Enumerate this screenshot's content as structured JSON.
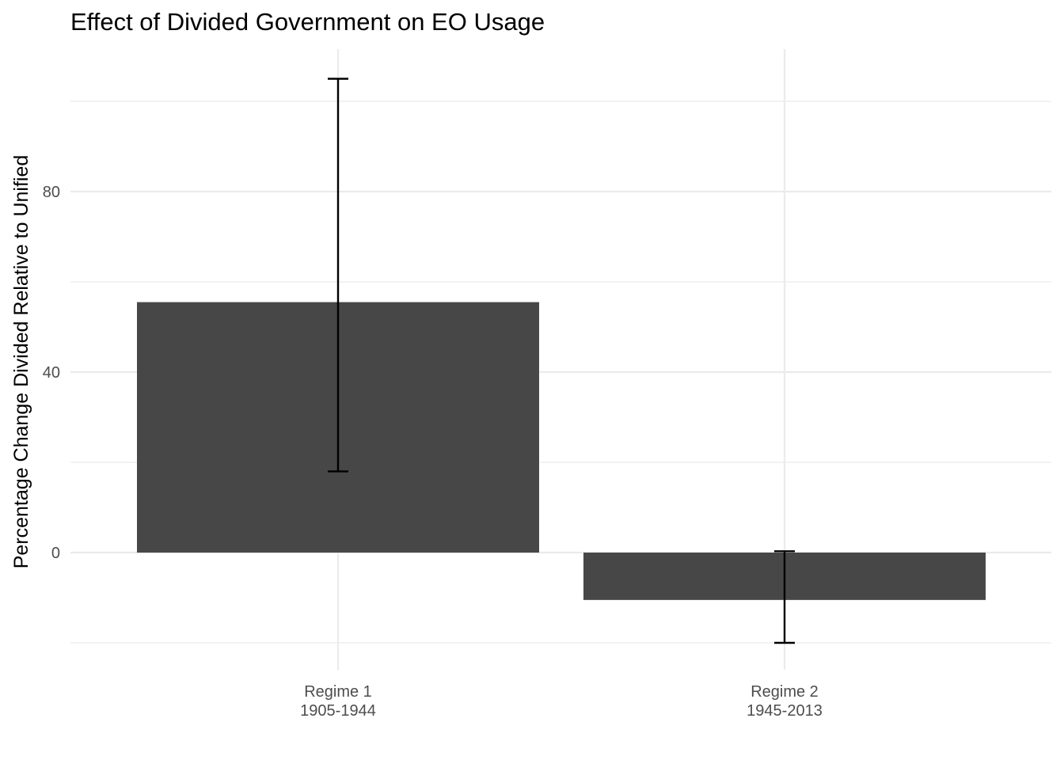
{
  "chart_data": {
    "type": "bar",
    "title": "Effect of Divided Government on EO Usage",
    "xlabel": "",
    "ylabel": "Percentage Change Divided Relative to Unified",
    "categories": [
      {
        "line1": "Regime 1",
        "line2": "1905-1944"
      },
      {
        "line1": "Regime 2",
        "line2": "1945-2013"
      }
    ],
    "values": [
      55.5,
      -10.5
    ],
    "error_bars": [
      {
        "low": 18,
        "high": 105
      },
      {
        "low": -20,
        "high": 0.3
      }
    ],
    "yticks": [
      0,
      40,
      80
    ],
    "ylim": [
      -25,
      111
    ],
    "grid": true,
    "bar_color": "#474747"
  }
}
